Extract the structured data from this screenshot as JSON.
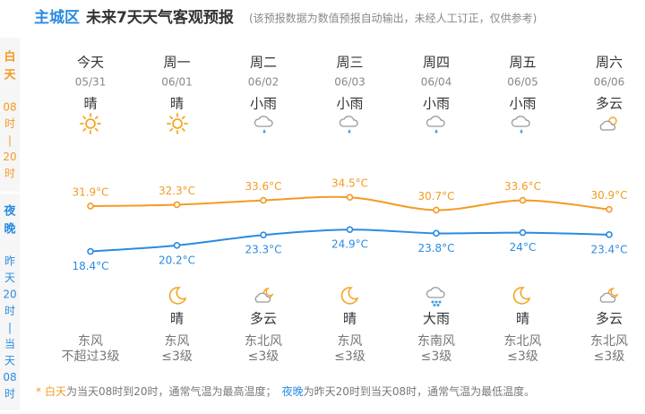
{
  "header": {
    "location": "主城区",
    "title": "未来7天天气客观预报",
    "note": "(该预报数据为数值预报自动输出，未经人工订正，仅供参考)"
  },
  "sidebar": {
    "day": {
      "label": [
        "白",
        "天"
      ],
      "time": [
        "08",
        "时",
        "|",
        "20",
        "时"
      ]
    },
    "night": {
      "label": [
        "夜",
        "晚"
      ],
      "time": [
        "昨",
        "天",
        "20",
        "时",
        "|",
        "当",
        "天",
        "08",
        "时"
      ]
    }
  },
  "days": [
    {
      "name": "今天",
      "date": "05/31",
      "day_weather": "晴",
      "wind_dir": "东风",
      "wind_level": "不超过3级"
    },
    {
      "name": "周一",
      "date": "06/01",
      "day_weather": "晴",
      "night_weather": "晴",
      "wind_dir": "东风",
      "wind_level": "≤3级"
    },
    {
      "name": "周二",
      "date": "06/02",
      "day_weather": "小雨",
      "night_weather": "多云",
      "wind_dir": "东北风",
      "wind_level": "≤3级"
    },
    {
      "name": "周三",
      "date": "06/03",
      "day_weather": "小雨",
      "night_weather": "晴",
      "wind_dir": "东风",
      "wind_level": "≤3级"
    },
    {
      "name": "周四",
      "date": "06/04",
      "day_weather": "小雨",
      "night_weather": "大雨",
      "wind_dir": "东南风",
      "wind_level": "≤3级"
    },
    {
      "name": "周五",
      "date": "06/05",
      "day_weather": "小雨",
      "night_weather": "晴",
      "wind_dir": "东北风",
      "wind_level": "≤3级"
    },
    {
      "name": "周六",
      "date": "06/06",
      "day_weather": "多云",
      "night_weather": "多云",
      "wind_dir": "东北风",
      "wind_level": "≤3级"
    }
  ],
  "temps": {
    "high": {
      "values": [
        31.9,
        32.3,
        33.6,
        34.5,
        30.7,
        33.6,
        30.9
      ],
      "value_labels": [
        "31.9°C",
        "32.3°C",
        "33.6°C",
        "34.5°C",
        "30.7°C",
        "33.6°C",
        "30.9°C"
      ]
    },
    "low": {
      "values": [
        18.4,
        20.2,
        23.3,
        24.9,
        23.8,
        24,
        23.4
      ],
      "value_labels": [
        "18.4°C",
        "20.2°C",
        "23.3°C",
        "24.9°C",
        "23.8°C",
        "24°C",
        "23.4°C"
      ]
    }
  },
  "footer": {
    "star": "*",
    "day": "白天",
    "day_text": "为当天08时到20时，通常气温为最高温度；",
    "night": "夜晚",
    "night_text": "为昨天20时到当天08时，通常气温为最低温度。"
  }
}
